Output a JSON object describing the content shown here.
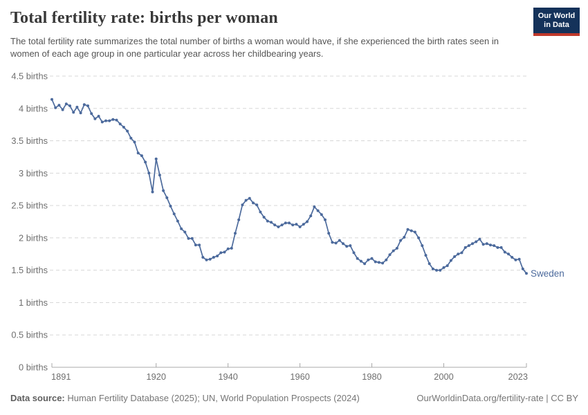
{
  "header": {
    "title": "Total fertility rate: births per woman",
    "subtitle": "The total fertility rate summarizes the total number of births a woman would have, if she experienced the birth rates seen in women of each age group in one particular year across her childbearing years.",
    "logo": {
      "line1": "Our World",
      "line2": "in Data"
    }
  },
  "colors": {
    "line": "#4C6A9C",
    "logo_navy": "#14325A",
    "logo_red": "#C0392B",
    "grid": "#d7d7d7",
    "axis": "#a8a8a8",
    "tick_text": "#6e6e6e"
  },
  "chart_data": {
    "type": "line",
    "title": "Total fertility rate: births per woman",
    "unit": "births per woman",
    "xlim": [
      1891,
      2023
    ],
    "ylim": [
      0,
      4.5
    ],
    "grid": "horizontal-dashed",
    "legend_position": "end-of-line-label",
    "yticks": [
      0,
      0.5,
      1,
      1.5,
      2,
      2.5,
      3,
      3.5,
      4,
      4.5
    ],
    "ytick_labels": [
      "0 births",
      "0.5 births",
      "1 births",
      "1.5 births",
      "2 births",
      "2.5 births",
      "3 births",
      "3.5 births",
      "4 births",
      "4.5 births"
    ],
    "xticks": [
      1891,
      1920,
      1940,
      1960,
      1980,
      2000,
      2023
    ],
    "series": [
      {
        "name": "Sweden",
        "color": "#4C6A9C",
        "years": [
          1891,
          1892,
          1893,
          1894,
          1895,
          1896,
          1897,
          1898,
          1899,
          1900,
          1901,
          1902,
          1903,
          1904,
          1905,
          1906,
          1907,
          1908,
          1909,
          1910,
          1911,
          1912,
          1913,
          1914,
          1915,
          1916,
          1917,
          1918,
          1919,
          1920,
          1921,
          1922,
          1923,
          1924,
          1925,
          1926,
          1927,
          1928,
          1929,
          1930,
          1931,
          1932,
          1933,
          1934,
          1935,
          1936,
          1937,
          1938,
          1939,
          1940,
          1941,
          1942,
          1943,
          1944,
          1945,
          1946,
          1947,
          1948,
          1949,
          1950,
          1951,
          1952,
          1953,
          1954,
          1955,
          1956,
          1957,
          1958,
          1959,
          1960,
          1961,
          1962,
          1963,
          1964,
          1965,
          1966,
          1967,
          1968,
          1969,
          1970,
          1971,
          1972,
          1973,
          1974,
          1975,
          1976,
          1977,
          1978,
          1979,
          1980,
          1981,
          1982,
          1983,
          1984,
          1985,
          1986,
          1987,
          1988,
          1989,
          1990,
          1991,
          1992,
          1993,
          1994,
          1995,
          1996,
          1997,
          1998,
          1999,
          2000,
          2001,
          2002,
          2003,
          2004,
          2005,
          2006,
          2007,
          2008,
          2009,
          2010,
          2011,
          2012,
          2013,
          2014,
          2015,
          2016,
          2017,
          2018,
          2019,
          2020,
          2021,
          2022,
          2023
        ],
        "values": [
          4.14,
          4.01,
          4.05,
          3.98,
          4.07,
          4.04,
          3.94,
          4.02,
          3.93,
          4.06,
          4.04,
          3.92,
          3.84,
          3.88,
          3.79,
          3.81,
          3.81,
          3.83,
          3.82,
          3.76,
          3.71,
          3.65,
          3.54,
          3.48,
          3.31,
          3.27,
          3.17,
          3.0,
          2.71,
          3.22,
          2.97,
          2.73,
          2.62,
          2.49,
          2.37,
          2.26,
          2.14,
          2.09,
          1.99,
          1.99,
          1.89,
          1.89,
          1.7,
          1.66,
          1.67,
          1.7,
          1.72,
          1.77,
          1.78,
          1.83,
          1.84,
          2.07,
          2.28,
          2.51,
          2.58,
          2.61,
          2.54,
          2.51,
          2.4,
          2.32,
          2.26,
          2.24,
          2.2,
          2.17,
          2.2,
          2.23,
          2.23,
          2.2,
          2.21,
          2.17,
          2.21,
          2.25,
          2.34,
          2.48,
          2.42,
          2.36,
          2.28,
          2.07,
          1.93,
          1.92,
          1.96,
          1.91,
          1.87,
          1.88,
          1.77,
          1.68,
          1.64,
          1.6,
          1.66,
          1.68,
          1.63,
          1.62,
          1.61,
          1.66,
          1.74,
          1.8,
          1.84,
          1.96,
          2.01,
          2.13,
          2.11,
          2.09,
          2.0,
          1.88,
          1.73,
          1.6,
          1.52,
          1.5,
          1.5,
          1.54,
          1.57,
          1.65,
          1.71,
          1.75,
          1.77,
          1.85,
          1.88,
          1.91,
          1.94,
          1.98,
          1.9,
          1.91,
          1.89,
          1.88,
          1.85,
          1.85,
          1.78,
          1.75,
          1.7,
          1.66,
          1.67,
          1.52,
          1.45
        ]
      }
    ]
  },
  "footer": {
    "datasource_label": "Data source:",
    "datasource_text": " Human Fertility Database (2025); UN, World Population Prospects (2024)",
    "link": "OurWorldinData.org/fertility-rate | CC BY"
  }
}
